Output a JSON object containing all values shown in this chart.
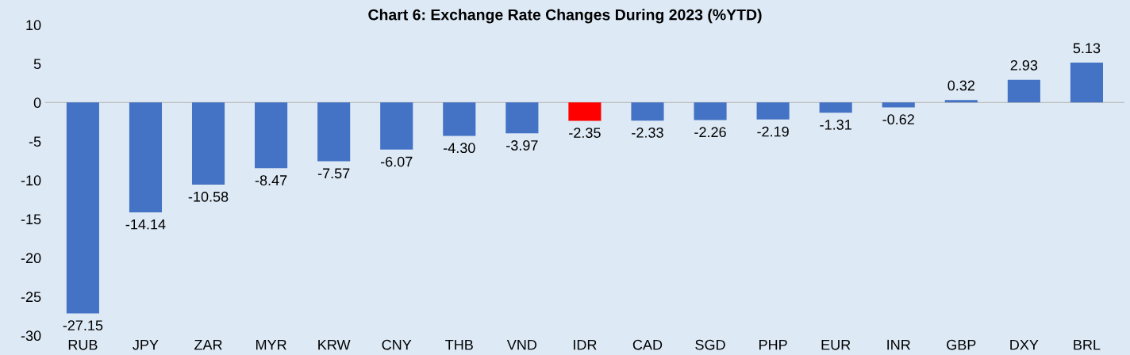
{
  "chart_data": {
    "type": "bar",
    "title": "Chart 6: Exchange Rate Changes During 2023 (%YTD)",
    "categories": [
      "RUB",
      "JPY",
      "ZAR",
      "MYR",
      "KRW",
      "CNY",
      "THB",
      "VND",
      "IDR",
      "CAD",
      "SGD",
      "PHP",
      "EUR",
      "INR",
      "GBP",
      "DXY",
      "BRL"
    ],
    "values": [
      -27.15,
      -14.14,
      -10.58,
      -8.47,
      -7.57,
      -6.07,
      -4.3,
      -3.97,
      -2.35,
      -2.33,
      -2.26,
      -2.19,
      -1.31,
      -0.62,
      0.32,
      2.93,
      5.13
    ],
    "value_labels": [
      "-27.15",
      "-14.14",
      "-10.58",
      "-8.47",
      "-7.57",
      "-6.07",
      "-4.30",
      "-3.97",
      "-2.35",
      "-2.33",
      "-2.26",
      "-2.19",
      "-1.31",
      "-0.62",
      "0.32",
      "2.93",
      "5.13"
    ],
    "colors": [
      "#4472c4",
      "#4472c4",
      "#4472c4",
      "#4472c4",
      "#4472c4",
      "#4472c4",
      "#4472c4",
      "#4472c4",
      "#ff0000",
      "#4472c4",
      "#4472c4",
      "#4472c4",
      "#4472c4",
      "#4472c4",
      "#4472c4",
      "#4472c4",
      "#4472c4"
    ],
    "ylim": [
      -30,
      10
    ],
    "yticks": [
      -30,
      -25,
      -20,
      -15,
      -10,
      -5,
      0,
      5,
      10
    ],
    "ref_lines": [
      {
        "axis": "y",
        "value": 0,
        "color": "#bfbfbf"
      }
    ],
    "grid": false,
    "legend": false
  }
}
